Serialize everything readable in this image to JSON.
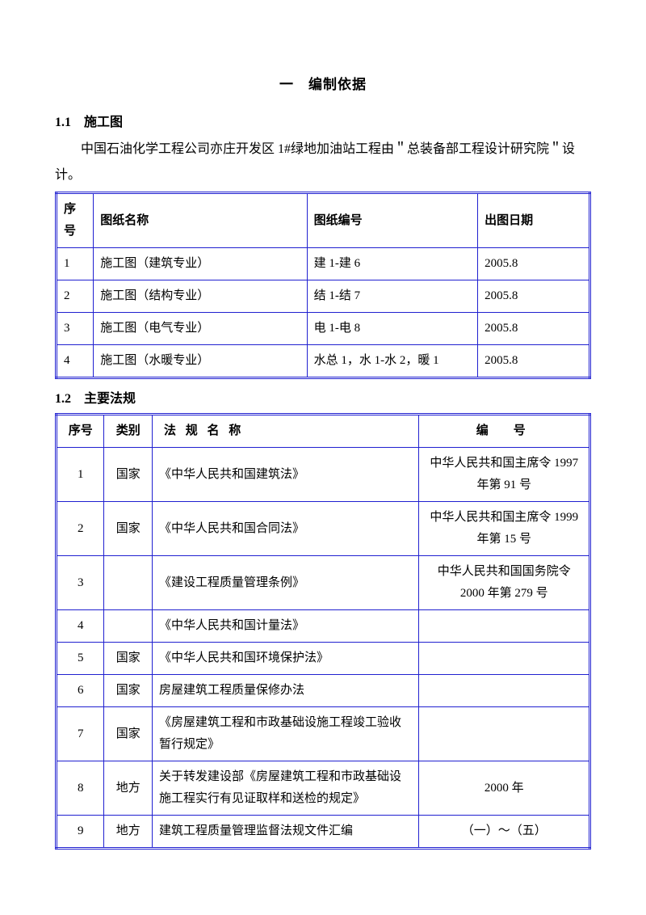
{
  "title": "一　编制依据",
  "section_1_1": {
    "heading": "1.1　施工图",
    "paragraph": "中国石油化学工程公司亦庄开发区 1#绿地加油站工程由＂总装备部工程设计研究院＂设计。"
  },
  "table1": {
    "headers": {
      "c1": "序号",
      "c2": "图纸名称",
      "c3": "图纸编号",
      "c4": "出图日期"
    },
    "rows": [
      {
        "no": "1",
        "name": "施工图（建筑专业）",
        "code": "建 1-建 6",
        "date": "2005.8"
      },
      {
        "no": "2",
        "name": "施工图（结构专业）",
        "code": "结 1-结 7",
        "date": "2005.8"
      },
      {
        "no": "3",
        "name": "施工图（电气专业）",
        "code": "电 1-电 8",
        "date": "2005.8"
      },
      {
        "no": "4",
        "name": "施工图（水暖专业）",
        "code": "水总 1，水 1-水 2，暖 1",
        "date": "2005.8"
      }
    ]
  },
  "section_1_2": {
    "heading": "1.2　主要法规"
  },
  "table2": {
    "headers": {
      "c1": "序号",
      "c2": "类别",
      "c3": "法 规 名 称",
      "c4": "编　号"
    },
    "rows": [
      {
        "no": "1",
        "cat": "国家",
        "name": "《中华人民共和国建筑法》",
        "num": "中华人民共和国主席令 1997 年第 91 号"
      },
      {
        "no": "2",
        "cat": "国家",
        "name": "《中华人民共和国合同法》",
        "num": "中华人民共和国主席令 1999 年第 15 号"
      },
      {
        "no": "3",
        "cat": "",
        "name": "《建设工程质量管理条例》",
        "num": "中华人民共和国国务院令 2000 年第 279 号"
      },
      {
        "no": "4",
        "cat": "",
        "name": "《中华人民共和国计量法》",
        "num": ""
      },
      {
        "no": "5",
        "cat": "国家",
        "name": "《中华人民共和国环境保护法》",
        "num": ""
      },
      {
        "no": "6",
        "cat": "国家",
        "name": "房屋建筑工程质量保修办法",
        "num": ""
      },
      {
        "no": "7",
        "cat": "国家",
        "name": "《房屋建筑工程和市政基础设施工程竣工验收暂行规定》",
        "num": ""
      },
      {
        "no": "8",
        "cat": "地方",
        "name": "关于转发建设部《房屋建筑工程和市政基础设施工程实行有见证取样和送检的规定》",
        "num": "2000 年"
      },
      {
        "no": "9",
        "cat": "地方",
        "name": "建筑工程质量管理监督法规文件汇编",
        "num": "（一）～（五）"
      }
    ]
  }
}
